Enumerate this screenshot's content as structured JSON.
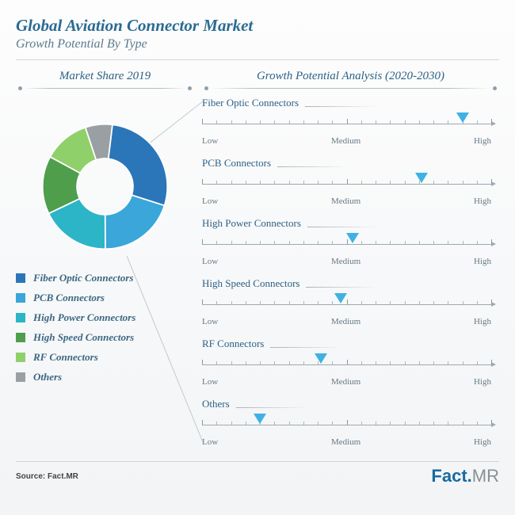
{
  "header": {
    "title": "Global Aviation Connector Market",
    "subtitle": "Growth Potential By Type",
    "title_color": "#2b6b93",
    "subtitle_color": "#5a7a8f"
  },
  "left_heading": "Market Share 2019",
  "right_heading": "Growth Potential Analysis (2020-2030)",
  "pie": {
    "type": "donut",
    "inner_radius_pct": 45,
    "segments": [
      {
        "label": "Fiber Optic Connectors",
        "value": 28,
        "color": "#2a76b8"
      },
      {
        "label": "PCB Connectors",
        "value": 20,
        "color": "#3aa6d9"
      },
      {
        "label": "High Power Connectors",
        "value": 18,
        "color": "#2bb5c7"
      },
      {
        "label": "High Speed Connectors",
        "value": 15,
        "color": "#4e9e4c"
      },
      {
        "label": "RF Connectors",
        "value": 12,
        "color": "#8fd06a"
      },
      {
        "label": "Others",
        "value": 7,
        "color": "#9a9fa3"
      }
    ],
    "background_color": "#f7f9fa"
  },
  "scale": {
    "low": "Low",
    "medium": "Medium",
    "high": "High",
    "ticks_between_majors": 9,
    "axis_color": "#9fa9b0",
    "tick_color": "#aeb7bd",
    "label_color": "#667883",
    "label_fontsize": 11,
    "marker_color": "#3fb2e3"
  },
  "growth_items": [
    {
      "name": "Fiber Optic Connectors",
      "position_pct": 90
    },
    {
      "name": "PCB Connectors",
      "position_pct": 76
    },
    {
      "name": "High Power Connectors",
      "position_pct": 52
    },
    {
      "name": "High Speed Connectors",
      "position_pct": 48
    },
    {
      "name": "RF Connectors",
      "position_pct": 41
    },
    {
      "name": "Others",
      "position_pct": 20
    }
  ],
  "footer": {
    "source": "Source: Fact.MR",
    "logo_part1": "Fact.",
    "logo_part2": "MR",
    "logo_color1": "#1a6aa0",
    "logo_color2": "#8a8f93"
  }
}
